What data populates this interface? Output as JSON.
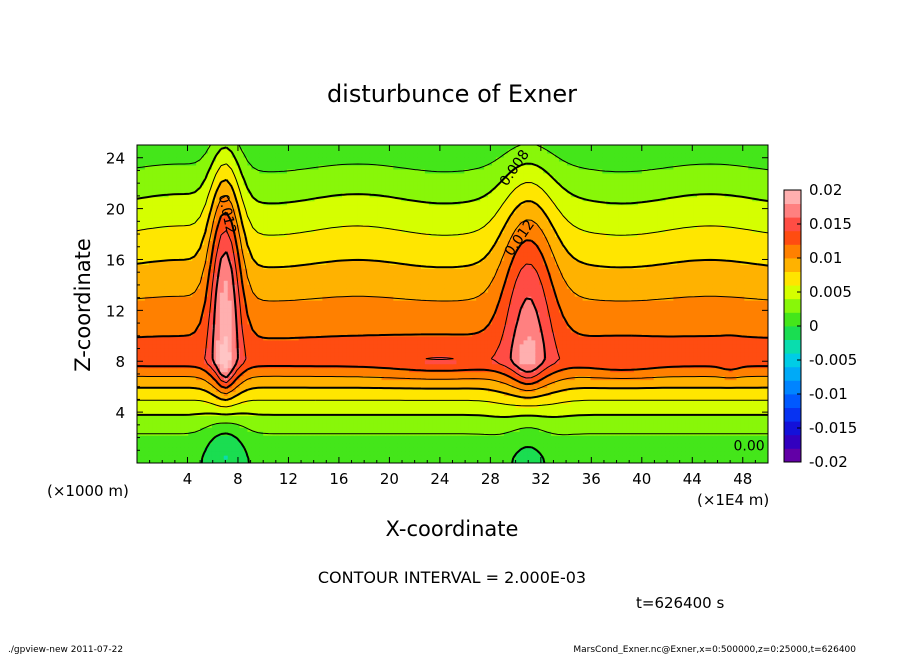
{
  "chart_data": {
    "type": "heatmap",
    "title": "disturbunce of Exner",
    "xlabel": "X-coordinate",
    "ylabel": "Z-coordinate",
    "x_unit_label": "(×1E4 m)",
    "y_unit_label": "(×1000 m)",
    "xlim": [
      0,
      50
    ],
    "ylim": [
      0,
      25
    ],
    "x_ticks": [
      4,
      8,
      12,
      16,
      20,
      24,
      28,
      32,
      36,
      40,
      44,
      48
    ],
    "y_ticks": [
      4,
      8,
      12,
      16,
      20,
      24
    ],
    "contour_labels": [
      {
        "text": "0.012",
        "x": 6.8,
        "y": 19.5
      },
      {
        "text": "0.008",
        "x": 30.2,
        "y": 23.0
      },
      {
        "text": "0.012",
        "x": 30.6,
        "y": 17.5
      },
      {
        "text": "0.00",
        "x": 48.5,
        "y": 1.0
      }
    ],
    "colorbar": {
      "ticks": [
        "0.02",
        "0.015",
        "0.01",
        "0.005",
        "0",
        "-0.005",
        "-0.01",
        "-0.015",
        "-0.02"
      ],
      "range": [
        -0.02,
        0.02
      ]
    },
    "colors": {
      "deep_blue": "#1a00cc",
      "green": "#22dd22",
      "yellow": "#ffff00",
      "orange": "#ff9900",
      "red": "#ff3322",
      "pink": "#ff8888"
    },
    "field_description": "positive disturbance with maximum ~0.014-0.016 near z=8, peaks at x=7 and x=31"
  },
  "annotations": {
    "contour_interval": "CONTOUR INTERVAL = 2.000E-03",
    "time": "t=626400 s"
  },
  "footer": {
    "left": "./gpview-new  2011-07-22",
    "right": "MarsCond_Exner.nc@Exner,x=0:500000,z=0:25000,t=626400"
  }
}
